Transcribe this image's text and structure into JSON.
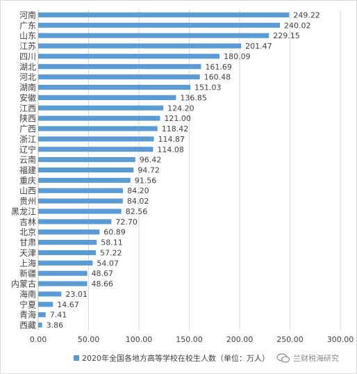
{
  "chart_data": {
    "type": "bar",
    "orientation": "horizontal",
    "categories": [
      "河南",
      "广东",
      "山东",
      "江苏",
      "四川",
      "湖北",
      "河北",
      "湖南",
      "安徽",
      "江西",
      "陕西",
      "广西",
      "浙江",
      "辽宁",
      "云南",
      "福建",
      "重庆",
      "山西",
      "贵州",
      "黑龙江",
      "吉林",
      "北京",
      "甘肃",
      "天津",
      "上海",
      "新疆",
      "内蒙古",
      "海南",
      "宁夏",
      "青海",
      "西藏"
    ],
    "value_labels": [
      "249.22",
      "240.02",
      "229.15",
      "201.47",
      "180.09",
      "161.69",
      "160.48",
      "151.03",
      "136.85",
      "124.20",
      "121.00",
      "118.42",
      "114.87",
      "114.08",
      "96.42",
      "94.72",
      "91.56",
      "84.20",
      "84.02",
      "82.56",
      "72.70",
      "60.89",
      "58.11",
      "57.22",
      "54.07",
      "48.67",
      "48.66",
      "23.01",
      "14.67",
      "7.41",
      "3.86"
    ],
    "series": [
      {
        "name": "2020年全国各地方高等学校在校生人数（单位：万人）",
        "values": [
          249.22,
          240.02,
          229.15,
          201.47,
          180.09,
          161.69,
          160.48,
          151.03,
          136.85,
          124.2,
          121.0,
          118.42,
          114.87,
          114.08,
          96.42,
          94.72,
          91.56,
          84.2,
          84.02,
          82.56,
          72.7,
          60.89,
          58.11,
          57.22,
          54.07,
          48.67,
          48.66,
          23.01,
          14.67,
          7.41,
          3.86
        ],
        "color": "#5b9bd5"
      }
    ],
    "xlim": [
      0,
      300
    ],
    "x_ticks": [
      "0.00",
      "50.00",
      "100.00",
      "150.00",
      "200.00",
      "250.00",
      "300.00"
    ],
    "grid": "vertical",
    "legend": "bottom"
  },
  "watermark": {
    "text": "兰财税海研究"
  }
}
